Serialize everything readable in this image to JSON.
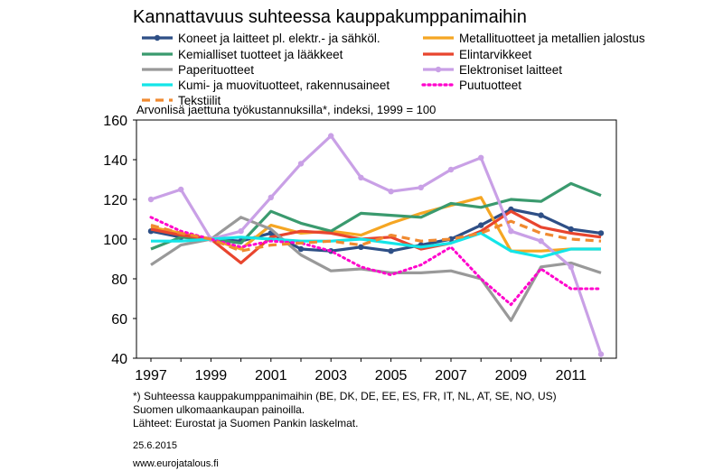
{
  "chart_data": {
    "type": "line",
    "title": "Kannattavuus suhteessa kauppakumppanimaihin",
    "subtitle": "Arvonlisä jaettuna työkustannuksilla*, indeksi, 1999 = 100",
    "ylim": [
      40,
      160
    ],
    "yticks": [
      "40",
      "60",
      "80",
      "100",
      "120",
      "140",
      "160"
    ],
    "xlim": [
      1997,
      2012
    ],
    "xticks": [
      "1997",
      "1999",
      "2001",
      "2003",
      "2005",
      "2007",
      "2009",
      "2011"
    ],
    "grid": false,
    "legend_position": "top",
    "x": [
      1997,
      1998,
      1999,
      2000,
      2001,
      2002,
      2003,
      2004,
      2005,
      2006,
      2007,
      2008,
      2009,
      2010,
      2011,
      2012
    ],
    "series": [
      {
        "name": "Koneet ja laitteet pl. elektr.- ja sähköl.",
        "color": "#2e4f86",
        "style": "solid",
        "marker": true,
        "values": [
          104,
          101,
          100,
          99,
          103,
          95,
          94,
          96,
          94,
          97,
          100,
          107,
          115,
          112,
          105,
          103
        ]
      },
      {
        "name": "Metallituotteet ja metallien jalostus",
        "color": "#f5a623",
        "style": "solid",
        "marker": false,
        "values": [
          106,
          103,
          100,
          95,
          107,
          103,
          104,
          102,
          108,
          113,
          117,
          121,
          94,
          94,
          95,
          95
        ]
      },
      {
        "name": "Kemialliset tuotteet ja lääkkeet",
        "color": "#3a9a6e",
        "style": "solid",
        "marker": false,
        "values": [
          95,
          101,
          100,
          98,
          114,
          108,
          104,
          113,
          112,
          111,
          118,
          116,
          120,
          119,
          128,
          122
        ]
      },
      {
        "name": "Elintarvikkeet",
        "color": "#e8452e",
        "style": "solid",
        "marker": false,
        "values": [
          105,
          102,
          100,
          88,
          101,
          104,
          103,
          100,
          101,
          95,
          98,
          104,
          114,
          106,
          103,
          101
        ]
      },
      {
        "name": "Paperituotteet",
        "color": "#999999",
        "style": "solid",
        "marker": false,
        "values": [
          87,
          97,
          100,
          111,
          105,
          92,
          84,
          85,
          83,
          83,
          84,
          80,
          59,
          86,
          88,
          83
        ]
      },
      {
        "name": "Elektroniset laitteet",
        "color": "#c9a0e6",
        "style": "solid",
        "marker": true,
        "values": [
          120,
          125,
          100,
          104,
          121,
          138,
          152,
          131,
          124,
          126,
          135,
          141,
          104,
          99,
          86,
          42
        ]
      },
      {
        "name": "Kumi- ja muovituotteet, rakennusaineet",
        "color": "#14e5e8",
        "style": "solid",
        "marker": false,
        "values": [
          99,
          99,
          100,
          101,
          100,
          99,
          99,
          100,
          98,
          96,
          98,
          103,
          94,
          91,
          95,
          95
        ]
      },
      {
        "name": "Puutuotteet",
        "color": "#ff00cc",
        "style": "dotted",
        "marker": false,
        "values": [
          111,
          104,
          100,
          96,
          99,
          98,
          94,
          86,
          82,
          87,
          96,
          80,
          67,
          85,
          75,
          75
        ]
      },
      {
        "name": "Tekstiilit",
        "color": "#f08a30",
        "style": "dashed",
        "marker": false,
        "values": [
          107,
          103,
          100,
          94,
          97,
          98,
          99,
          97,
          102,
          99,
          100,
          103,
          109,
          103,
          100,
          99
        ]
      }
    ]
  },
  "footnotes": [
    "*) Suhteessa kauppakumppanimaihin  (BE, DK, DE, EE, ES, FR, IT, NL, AT, SE, NO, US)",
    "Suomen ulkomaankaupan  painoilla.",
    "Lähteet: Eurostat ja Suomen Pankin laskelmat."
  ],
  "date": "25.6.2015",
  "website": "www.eurojatalous.fi"
}
